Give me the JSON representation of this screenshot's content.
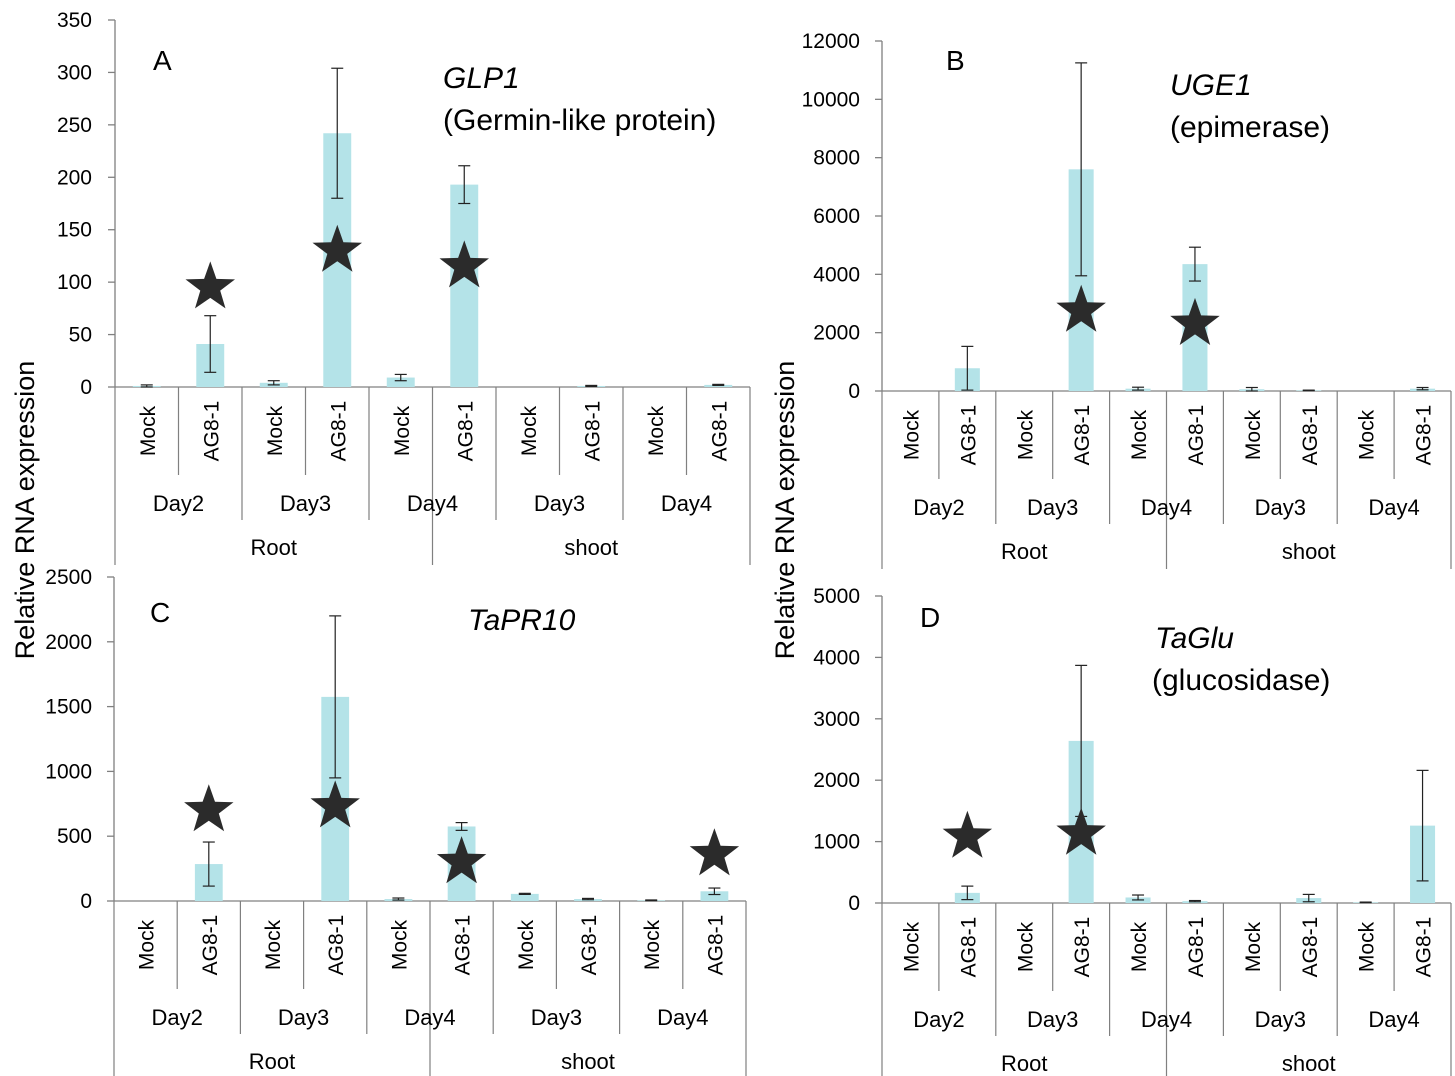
{
  "y_axis_label": "Relative RNA expression",
  "colors": {
    "bar": "#b4e3e8",
    "axis": "#808080",
    "error": "#222222",
    "star": "#2b2b2b"
  },
  "chart_data": [
    {
      "type": "bar",
      "panel": "A",
      "gene": "GLP1",
      "description": "(Germin-like protein)",
      "categories": [
        "Mock",
        "AG8-1",
        "Mock",
        "AG8-1",
        "Mock",
        "AG8-1",
        "Mock",
        "AG8-1",
        "Mock",
        "AG8-1"
      ],
      "days": [
        "Day2",
        "Day3",
        "Day4",
        "Day3",
        "Day4"
      ],
      "tissues": [
        "Root",
        "shoot"
      ],
      "values": [
        1,
        41,
        4,
        242,
        9,
        193,
        0,
        1,
        0,
        2
      ],
      "error": [
        1,
        27,
        2,
        62,
        3,
        18,
        0,
        0.5,
        0,
        0.5
      ],
      "significant": [
        false,
        true,
        false,
        true,
        false,
        true,
        false,
        false,
        false,
        false
      ],
      "star_y": [
        null,
        95,
        null,
        130,
        null,
        115,
        null,
        null,
        null,
        null
      ],
      "ylim": [
        0,
        350
      ],
      "yticks": [
        0,
        50,
        100,
        150,
        200,
        250,
        300,
        350
      ]
    },
    {
      "type": "bar",
      "panel": "B",
      "gene": "UGE1",
      "description": "(epimerase)",
      "categories": [
        "Mock",
        "AG8-1",
        "Mock",
        "AG8-1",
        "Mock",
        "AG8-1",
        "Mock",
        "AG8-1",
        "Mock",
        "AG8-1"
      ],
      "days": [
        "Day2",
        "Day3",
        "Day4",
        "Day3",
        "Day4"
      ],
      "tissues": [
        "Root",
        "shoot"
      ],
      "values": [
        0,
        780,
        0,
        7600,
        80,
        4350,
        60,
        20,
        0,
        80
      ],
      "error": [
        0,
        750,
        0,
        3650,
        50,
        580,
        60,
        10,
        0,
        40
      ],
      "significant": [
        false,
        false,
        false,
        true,
        false,
        true,
        false,
        false,
        false,
        false
      ],
      "star_y": [
        null,
        null,
        null,
        2750,
        null,
        2300,
        null,
        null,
        null,
        null
      ],
      "ylim": [
        0,
        12000
      ],
      "yticks": [
        0,
        2000,
        4000,
        6000,
        8000,
        10000,
        12000
      ]
    },
    {
      "type": "bar",
      "panel": "C",
      "gene": "TaPR10",
      "description": "",
      "categories": [
        "Mock",
        "AG8-1",
        "Mock",
        "AG8-1",
        "Mock",
        "AG8-1",
        "Mock",
        "AG8-1",
        "Mock",
        "AG8-1"
      ],
      "days": [
        "Day2",
        "Day3",
        "Day4",
        "Day3",
        "Day4"
      ],
      "tissues": [
        "Root",
        "shoot"
      ],
      "values": [
        0,
        285,
        0,
        1575,
        15,
        575,
        55,
        15,
        5,
        75
      ],
      "error": [
        0,
        170,
        0,
        625,
        8,
        30,
        4,
        5,
        3,
        25
      ],
      "significant": [
        false,
        true,
        false,
        true,
        false,
        true,
        false,
        false,
        false,
        true
      ],
      "star_y": [
        null,
        700,
        null,
        730,
        null,
        300,
        null,
        null,
        null,
        360
      ],
      "ylim": [
        0,
        2500
      ],
      "yticks": [
        0,
        500,
        1000,
        1500,
        2000,
        2500
      ]
    },
    {
      "type": "bar",
      "panel": "D",
      "gene": "TaGlu",
      "description": "(glucosidase)",
      "categories": [
        "Mock",
        "AG8-1",
        "Mock",
        "AG8-1",
        "Mock",
        "AG8-1",
        "Mock",
        "AG8-1",
        "Mock",
        "AG8-1"
      ],
      "days": [
        "Day2",
        "Day3",
        "Day4",
        "Day3",
        "Day4"
      ],
      "tissues": [
        "Root",
        "shoot"
      ],
      "values": [
        0,
        165,
        0,
        2640,
        90,
        30,
        0,
        80,
        10,
        1260
      ],
      "error": [
        0,
        110,
        0,
        1230,
        40,
        10,
        0,
        60,
        5,
        900
      ],
      "significant": [
        false,
        true,
        false,
        true,
        false,
        false,
        false,
        false,
        false,
        false
      ],
      "star_y": [
        null,
        1080,
        null,
        1130,
        null,
        null,
        null,
        null,
        null,
        null
      ],
      "ylim": [
        0,
        5000
      ],
      "yticks": [
        0,
        1000,
        2000,
        3000,
        4000,
        5000
      ]
    }
  ]
}
